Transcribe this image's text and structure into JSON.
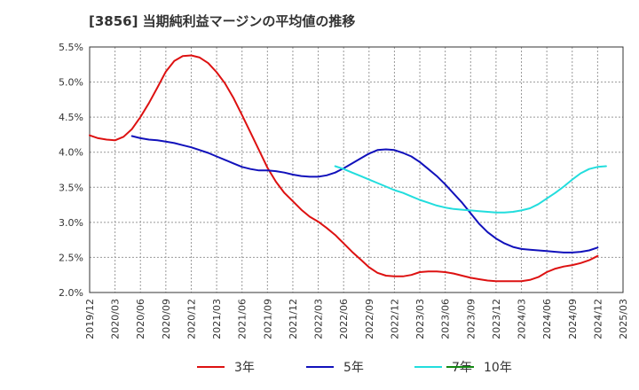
{
  "chart_data": {
    "type": "line",
    "title": "[3856]  当期純利益マージンの平均値の推移",
    "xlabel": "",
    "ylabel": "",
    "x_ticks": [
      "2019/12",
      "2020/03",
      "2020/06",
      "2020/09",
      "2020/12",
      "2021/03",
      "2021/06",
      "2021/09",
      "2021/12",
      "2022/03",
      "2022/06",
      "2022/09",
      "2022/12",
      "2023/03",
      "2023/06",
      "2023/09",
      "2023/12",
      "2024/03",
      "2024/06",
      "2024/09",
      "2024/12",
      "2025/03"
    ],
    "y_ticks": [
      "2.0%",
      "2.5%",
      "3.0%",
      "3.5%",
      "4.0%",
      "4.5%",
      "5.0%",
      "5.5%"
    ],
    "ylim": [
      2.0,
      5.5
    ],
    "grid": true,
    "legend_position": "bottom",
    "series": [
      {
        "name": "3年",
        "color": "#dd1111",
        "points": [
          [
            "2019/12",
            4.24
          ],
          [
            "2020/01",
            4.2
          ],
          [
            "2020/02",
            4.18
          ],
          [
            "2020/03",
            4.17
          ],
          [
            "2020/04",
            4.22
          ],
          [
            "2020/05",
            4.33
          ],
          [
            "2020/06",
            4.5
          ],
          [
            "2020/07",
            4.7
          ],
          [
            "2020/08",
            4.92
          ],
          [
            "2020/09",
            5.15
          ],
          [
            "2020/10",
            5.3
          ],
          [
            "2020/11",
            5.37
          ],
          [
            "2020/12",
            5.38
          ],
          [
            "2021/01",
            5.35
          ],
          [
            "2021/02",
            5.27
          ],
          [
            "2021/03",
            5.14
          ],
          [
            "2021/04",
            4.98
          ],
          [
            "2021/05",
            4.77
          ],
          [
            "2021/06",
            4.53
          ],
          [
            "2021/07",
            4.28
          ],
          [
            "2021/08",
            4.03
          ],
          [
            "2021/09",
            3.78
          ],
          [
            "2021/10",
            3.58
          ],
          [
            "2021/11",
            3.42
          ],
          [
            "2021/12",
            3.3
          ],
          [
            "2022/01",
            3.18
          ],
          [
            "2022/02",
            3.08
          ],
          [
            "2022/03",
            3.01
          ],
          [
            "2022/04",
            2.92
          ],
          [
            "2022/05",
            2.82
          ],
          [
            "2022/06",
            2.7
          ],
          [
            "2022/07",
            2.58
          ],
          [
            "2022/08",
            2.47
          ],
          [
            "2022/09",
            2.36
          ],
          [
            "2022/10",
            2.28
          ],
          [
            "2022/11",
            2.24
          ],
          [
            "2022/12",
            2.23
          ],
          [
            "2023/01",
            2.23
          ],
          [
            "2023/02",
            2.25
          ],
          [
            "2023/03",
            2.29
          ],
          [
            "2023/04",
            2.3
          ],
          [
            "2023/05",
            2.3
          ],
          [
            "2023/06",
            2.29
          ],
          [
            "2023/07",
            2.27
          ],
          [
            "2023/08",
            2.24
          ],
          [
            "2023/09",
            2.21
          ],
          [
            "2023/10",
            2.19
          ],
          [
            "2023/11",
            2.17
          ],
          [
            "2023/12",
            2.16
          ],
          [
            "2024/01",
            2.16
          ],
          [
            "2024/02",
            2.16
          ],
          [
            "2024/03",
            2.16
          ],
          [
            "2024/04",
            2.18
          ],
          [
            "2024/05",
            2.22
          ],
          [
            "2024/06",
            2.29
          ],
          [
            "2024/07",
            2.34
          ],
          [
            "2024/08",
            2.37
          ],
          [
            "2024/09",
            2.39
          ],
          [
            "2024/10",
            2.42
          ],
          [
            "2024/11",
            2.46
          ],
          [
            "2024/12",
            2.52
          ]
        ]
      },
      {
        "name": "5年",
        "color": "#1111bb",
        "points": [
          [
            "2020/05",
            4.23
          ],
          [
            "2020/06",
            4.2
          ],
          [
            "2020/07",
            4.18
          ],
          [
            "2020/08",
            4.17
          ],
          [
            "2020/09",
            4.15
          ],
          [
            "2020/10",
            4.13
          ],
          [
            "2020/11",
            4.1
          ],
          [
            "2020/12",
            4.07
          ],
          [
            "2021/01",
            4.03
          ],
          [
            "2021/02",
            3.99
          ],
          [
            "2021/03",
            3.94
          ],
          [
            "2021/04",
            3.89
          ],
          [
            "2021/05",
            3.84
          ],
          [
            "2021/06",
            3.79
          ],
          [
            "2021/07",
            3.76
          ],
          [
            "2021/08",
            3.74
          ],
          [
            "2021/09",
            3.74
          ],
          [
            "2021/10",
            3.73
          ],
          [
            "2021/11",
            3.71
          ],
          [
            "2021/12",
            3.68
          ],
          [
            "2022/01",
            3.66
          ],
          [
            "2022/02",
            3.65
          ],
          [
            "2022/03",
            3.65
          ],
          [
            "2022/04",
            3.67
          ],
          [
            "2022/05",
            3.71
          ],
          [
            "2022/06",
            3.77
          ],
          [
            "2022/07",
            3.84
          ],
          [
            "2022/08",
            3.91
          ],
          [
            "2022/09",
            3.98
          ],
          [
            "2022/10",
            4.03
          ],
          [
            "2022/11",
            4.04
          ],
          [
            "2022/12",
            4.03
          ],
          [
            "2023/01",
            3.99
          ],
          [
            "2023/02",
            3.94
          ],
          [
            "2023/03",
            3.86
          ],
          [
            "2023/04",
            3.76
          ],
          [
            "2023/05",
            3.66
          ],
          [
            "2023/06",
            3.54
          ],
          [
            "2023/07",
            3.41
          ],
          [
            "2023/08",
            3.28
          ],
          [
            "2023/09",
            3.13
          ],
          [
            "2023/10",
            2.98
          ],
          [
            "2023/11",
            2.86
          ],
          [
            "2023/12",
            2.77
          ],
          [
            "2024/01",
            2.7
          ],
          [
            "2024/02",
            2.65
          ],
          [
            "2024/03",
            2.62
          ],
          [
            "2024/04",
            2.61
          ],
          [
            "2024/05",
            2.6
          ],
          [
            "2024/06",
            2.59
          ],
          [
            "2024/07",
            2.58
          ],
          [
            "2024/08",
            2.57
          ],
          [
            "2024/09",
            2.57
          ],
          [
            "2024/10",
            2.58
          ],
          [
            "2024/11",
            2.6
          ],
          [
            "2024/12",
            2.64
          ]
        ]
      },
      {
        "name": "7年",
        "color": "#22dddd",
        "points": [
          [
            "2022/05",
            3.8
          ],
          [
            "2022/06",
            3.76
          ],
          [
            "2022/07",
            3.71
          ],
          [
            "2022/08",
            3.66
          ],
          [
            "2022/09",
            3.61
          ],
          [
            "2022/10",
            3.56
          ],
          [
            "2022/11",
            3.51
          ],
          [
            "2022/12",
            3.46
          ],
          [
            "2023/01",
            3.42
          ],
          [
            "2023/02",
            3.37
          ],
          [
            "2023/03",
            3.32
          ],
          [
            "2023/04",
            3.28
          ],
          [
            "2023/05",
            3.24
          ],
          [
            "2023/06",
            3.21
          ],
          [
            "2023/07",
            3.19
          ],
          [
            "2023/08",
            3.18
          ],
          [
            "2023/09",
            3.17
          ],
          [
            "2023/10",
            3.16
          ],
          [
            "2023/11",
            3.15
          ],
          [
            "2023/12",
            3.14
          ],
          [
            "2024/01",
            3.14
          ],
          [
            "2024/02",
            3.15
          ],
          [
            "2024/03",
            3.17
          ],
          [
            "2024/04",
            3.2
          ],
          [
            "2024/05",
            3.26
          ],
          [
            "2024/06",
            3.34
          ],
          [
            "2024/07",
            3.42
          ],
          [
            "2024/08",
            3.51
          ],
          [
            "2024/09",
            3.61
          ],
          [
            "2024/10",
            3.7
          ],
          [
            "2024/11",
            3.76
          ],
          [
            "2024/12",
            3.79
          ],
          [
            "2025/01",
            3.8
          ]
        ]
      },
      {
        "name": "10年",
        "color": "#118811",
        "points": []
      }
    ]
  }
}
